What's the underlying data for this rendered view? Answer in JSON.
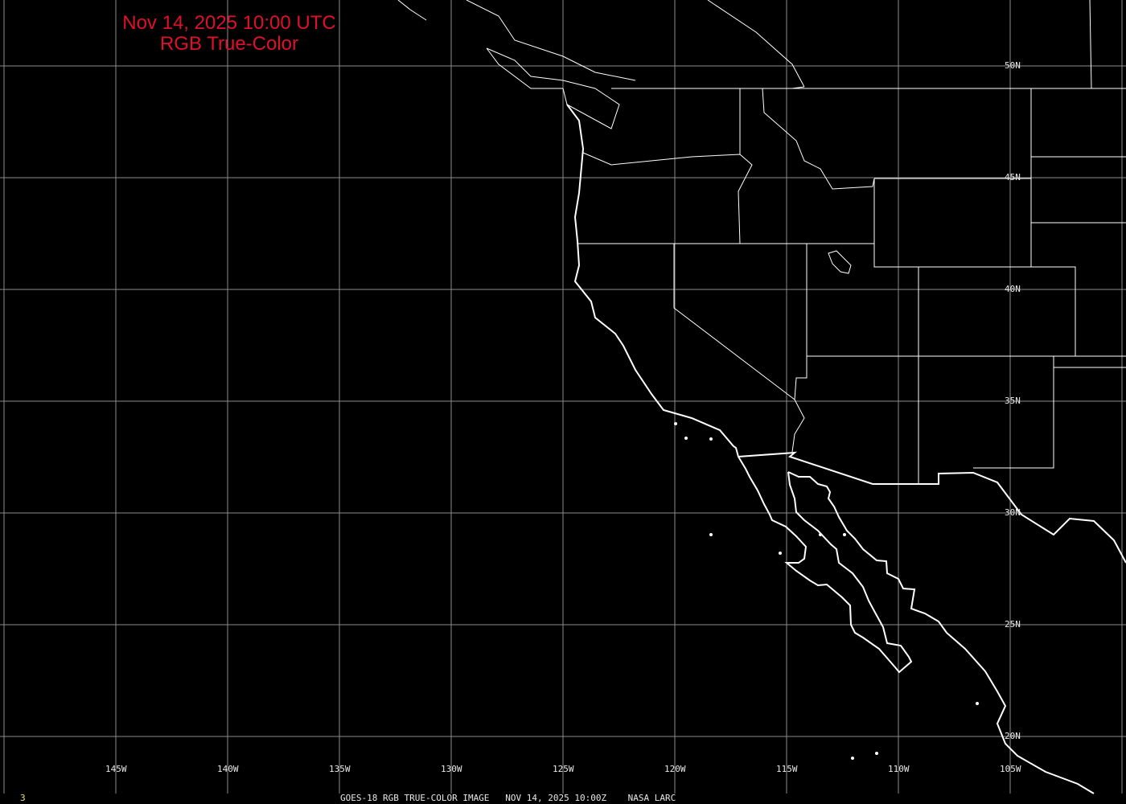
{
  "header": {
    "datetime": "Nov 14, 2025 10:00 UTC",
    "product": "RGB True-Color"
  },
  "map": {
    "longitude_labels": [
      "145W",
      "140W",
      "135W",
      "130W",
      "125W",
      "120W",
      "115W",
      "110W",
      "105W"
    ],
    "latitude_labels": [
      "50N",
      "45N",
      "40N",
      "35N",
      "30N",
      "25N",
      "20N"
    ],
    "colors": {
      "background": "#000000",
      "grid": "#8c8c8c",
      "coastline": "#ffffff",
      "title": "#e0102a",
      "frame_number": "#e8e060"
    }
  },
  "footer": {
    "frame_number": "3",
    "caption": "GOES-18 RGB TRUE-COLOR IMAGE   NOV 14, 2025 10:00Z    NASA LARC"
  }
}
